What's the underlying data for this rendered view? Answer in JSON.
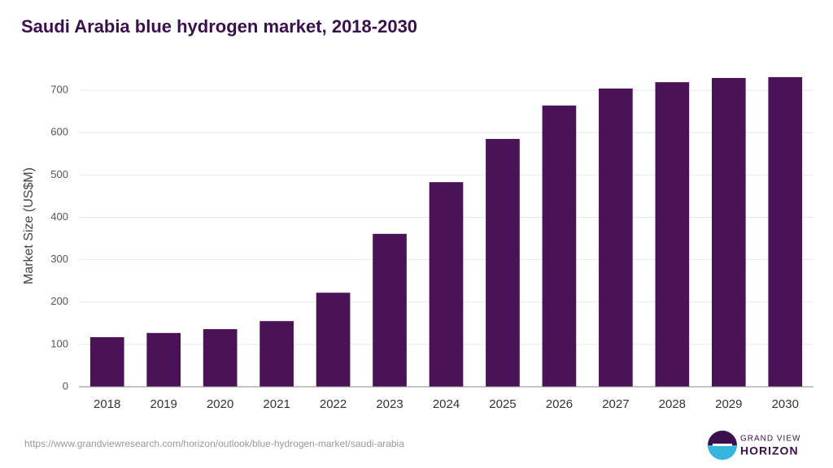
{
  "chart_data": {
    "type": "bar",
    "title": "Saudi Arabia blue hydrogen market, 2018-2030",
    "y_label": "Market Size (US$M)",
    "categories": [
      "2018",
      "2019",
      "2020",
      "2021",
      "2022",
      "2023",
      "2024",
      "2025",
      "2026",
      "2027",
      "2028",
      "2029",
      "2030"
    ],
    "values": [
      117,
      127,
      136,
      155,
      222,
      361,
      483,
      585,
      664,
      704,
      719,
      729,
      731
    ],
    "color": "#4a1257",
    "ylim": [
      0,
      750
    ],
    "yticks": [
      0,
      100,
      200,
      300,
      400,
      500,
      600,
      700
    ],
    "grid": true
  },
  "footer": {
    "url": "https://www.grandviewresearch.com/horizon/outlook/blue-hydrogen-market/saudi-arabia",
    "brand_top": "GRAND VIEW",
    "brand_bottom": "HORIZON"
  }
}
